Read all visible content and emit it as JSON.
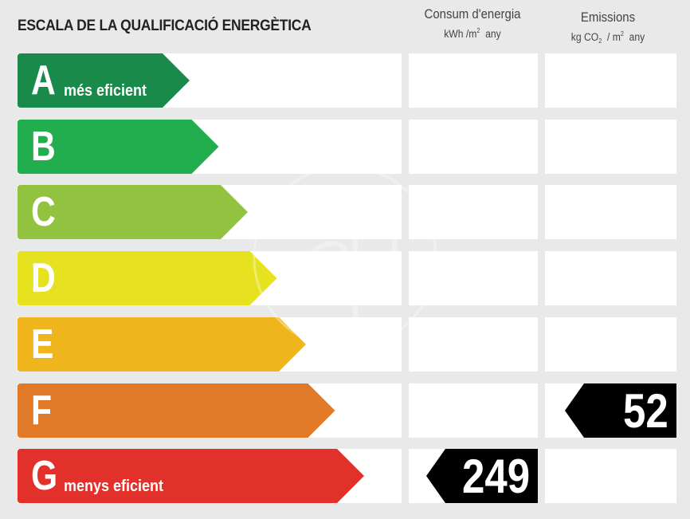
{
  "title": "ESCALA DE LA QUALIFICACIÓ ENERGÈTICA",
  "columns": {
    "energy": {
      "heading": "Consum d'energia",
      "unit_pre": "kWh /m",
      "unit_sup": "2",
      "unit_post": "any"
    },
    "emissions": {
      "heading": "Emissions",
      "unit_pre": "kg CO",
      "unit_sub": "2",
      "unit_mid": "/ m",
      "unit_sup": "2",
      "unit_post": "any"
    }
  },
  "ratings": [
    {
      "letter": "A",
      "caption": "més eficient",
      "color": "#1a8a4a"
    },
    {
      "letter": "B",
      "caption": "",
      "color": "#22ad4f"
    },
    {
      "letter": "C",
      "caption": "",
      "color": "#92c340"
    },
    {
      "letter": "D",
      "caption": "",
      "color": "#e6e21f"
    },
    {
      "letter": "E",
      "caption": "",
      "color": "#efb51c"
    },
    {
      "letter": "F",
      "caption": "",
      "color": "#e07a28"
    },
    {
      "letter": "G",
      "caption": "menys eficient",
      "color": "#e2302a"
    }
  ],
  "results": {
    "energy": {
      "value": "249",
      "rating": "G"
    },
    "emissions": {
      "value": "52",
      "rating": "F"
    }
  },
  "badge_color": "#000000"
}
